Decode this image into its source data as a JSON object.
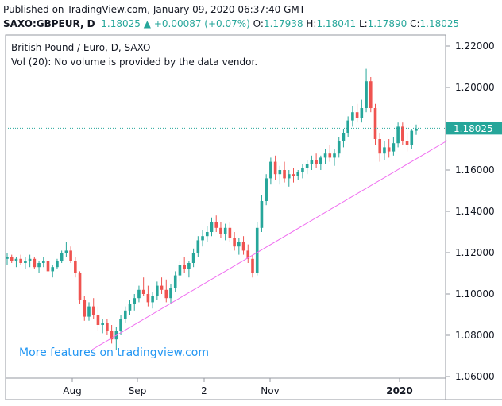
{
  "published": "Published on TradingView.com, January 09, 2020 06:37:40 GMT",
  "header": {
    "symbol": "SAXO:GBPEUR, D",
    "close": "1.18025",
    "arrow": "▲",
    "change": "+0.00087 (+0.07%)",
    "o_key": "O:",
    "o_val": "1.17938",
    "h_key": "H:",
    "h_val": "1.18041",
    "l_key": "L:",
    "l_val": "1.17890",
    "c_key": "C:",
    "c_val": "1.18025"
  },
  "legend": {
    "title": "British Pound / Euro, D, SAXO",
    "volume": "Vol (20): No volume is provided by the data vendor."
  },
  "watermark": "More features on tradingview.com",
  "colors": {
    "up": "#26a69a",
    "down": "#ef5350",
    "trendline": "#f06ef0",
    "price_line": "#26a69a"
  },
  "chart_data": {
    "type": "candlestick",
    "y_ticks": [
      "1.22000",
      "1.20000",
      "1.18000",
      "1.16000",
      "1.14000",
      "1.12000",
      "1.10000",
      "1.08000",
      "1.06000"
    ],
    "ylim": [
      1.06,
      1.22
    ],
    "x_ticks": [
      "Aug",
      "Sep",
      "2",
      "Nov",
      "2020"
    ],
    "last_price": "1.18025",
    "series": [
      {
        "name": "GBPEUR",
        "ohlc": [
          [
            1.117,
            1.12,
            1.114,
            1.118
          ],
          [
            1.118,
            1.119,
            1.115,
            1.116
          ],
          [
            1.116,
            1.118,
            1.113,
            1.117
          ],
          [
            1.117,
            1.119,
            1.114,
            1.115
          ],
          [
            1.115,
            1.118,
            1.112,
            1.116
          ],
          [
            1.116,
            1.119,
            1.113,
            1.117
          ],
          [
            1.117,
            1.118,
            1.112,
            1.113
          ],
          [
            1.113,
            1.116,
            1.11,
            1.115
          ],
          [
            1.115,
            1.118,
            1.113,
            1.116
          ],
          [
            1.116,
            1.117,
            1.11,
            1.111
          ],
          [
            1.111,
            1.114,
            1.108,
            1.113
          ],
          [
            1.113,
            1.117,
            1.112,
            1.116
          ],
          [
            1.116,
            1.121,
            1.115,
            1.12
          ],
          [
            1.12,
            1.125,
            1.118,
            1.121
          ],
          [
            1.121,
            1.123,
            1.115,
            1.116
          ],
          [
            1.116,
            1.118,
            1.108,
            1.11
          ],
          [
            1.11,
            1.111,
            1.095,
            1.097
          ],
          [
            1.097,
            1.099,
            1.087,
            1.089
          ],
          [
            1.089,
            1.096,
            1.087,
            1.094
          ],
          [
            1.094,
            1.098,
            1.088,
            1.09
          ],
          [
            1.09,
            1.094,
            1.082,
            1.085
          ],
          [
            1.085,
            1.088,
            1.081,
            1.086
          ],
          [
            1.086,
            1.088,
            1.08,
            1.082
          ],
          [
            1.082,
            1.085,
            1.076,
            1.078
          ],
          [
            1.078,
            1.084,
            1.073,
            1.082
          ],
          [
            1.082,
            1.09,
            1.08,
            1.088
          ],
          [
            1.088,
            1.094,
            1.086,
            1.092
          ],
          [
            1.092,
            1.097,
            1.09,
            1.095
          ],
          [
            1.095,
            1.1,
            1.092,
            1.098
          ],
          [
            1.098,
            1.104,
            1.096,
            1.102
          ],
          [
            1.102,
            1.108,
            1.099,
            1.1
          ],
          [
            1.1,
            1.104,
            1.094,
            1.096
          ],
          [
            1.096,
            1.101,
            1.093,
            1.099
          ],
          [
            1.099,
            1.106,
            1.097,
            1.104
          ],
          [
            1.104,
            1.108,
            1.1,
            1.102
          ],
          [
            1.102,
            1.107,
            1.096,
            1.098
          ],
          [
            1.098,
            1.105,
            1.095,
            1.103
          ],
          [
            1.103,
            1.111,
            1.101,
            1.109
          ],
          [
            1.109,
            1.116,
            1.106,
            1.114
          ],
          [
            1.114,
            1.118,
            1.11,
            1.112
          ],
          [
            1.112,
            1.116,
            1.108,
            1.115
          ],
          [
            1.115,
            1.122,
            1.113,
            1.12
          ],
          [
            1.12,
            1.128,
            1.118,
            1.126
          ],
          [
            1.126,
            1.131,
            1.123,
            1.128
          ],
          [
            1.128,
            1.133,
            1.125,
            1.13
          ],
          [
            1.13,
            1.137,
            1.128,
            1.135
          ],
          [
            1.135,
            1.138,
            1.13,
            1.132
          ],
          [
            1.132,
            1.135,
            1.127,
            1.129
          ],
          [
            1.129,
            1.134,
            1.126,
            1.132
          ],
          [
            1.132,
            1.135,
            1.125,
            1.127
          ],
          [
            1.127,
            1.13,
            1.121,
            1.123
          ],
          [
            1.123,
            1.127,
            1.119,
            1.125
          ],
          [
            1.125,
            1.128,
            1.119,
            1.121
          ],
          [
            1.121,
            1.124,
            1.115,
            1.117
          ],
          [
            1.117,
            1.119,
            1.108,
            1.11
          ],
          [
            1.11,
            1.135,
            1.109,
            1.132
          ],
          [
            1.132,
            1.148,
            1.13,
            1.145
          ],
          [
            1.145,
            1.158,
            1.143,
            1.156
          ],
          [
            1.156,
            1.166,
            1.153,
            1.164
          ],
          [
            1.164,
            1.167,
            1.155,
            1.158
          ],
          [
            1.158,
            1.162,
            1.153,
            1.16
          ],
          [
            1.16,
            1.164,
            1.154,
            1.156
          ],
          [
            1.156,
            1.16,
            1.152,
            1.158
          ],
          [
            1.158,
            1.161,
            1.154,
            1.157
          ],
          [
            1.157,
            1.16,
            1.155,
            1.159
          ],
          [
            1.159,
            1.163,
            1.156,
            1.161
          ],
          [
            1.161,
            1.165,
            1.158,
            1.163
          ],
          [
            1.163,
            1.167,
            1.16,
            1.165
          ],
          [
            1.165,
            1.168,
            1.161,
            1.163
          ],
          [
            1.163,
            1.167,
            1.16,
            1.166
          ],
          [
            1.166,
            1.17,
            1.163,
            1.168
          ],
          [
            1.168,
            1.172,
            1.164,
            1.166
          ],
          [
            1.166,
            1.17,
            1.162,
            1.168
          ],
          [
            1.168,
            1.176,
            1.166,
            1.174
          ],
          [
            1.174,
            1.18,
            1.171,
            1.178
          ],
          [
            1.178,
            1.186,
            1.176,
            1.184
          ],
          [
            1.184,
            1.191,
            1.181,
            1.188
          ],
          [
            1.188,
            1.192,
            1.183,
            1.185
          ],
          [
            1.185,
            1.194,
            1.183,
            1.19
          ],
          [
            1.19,
            1.209,
            1.188,
            1.203
          ],
          [
            1.203,
            1.205,
            1.188,
            1.19
          ],
          [
            1.19,
            1.192,
            1.172,
            1.175
          ],
          [
            1.175,
            1.178,
            1.164,
            1.168
          ],
          [
            1.168,
            1.174,
            1.165,
            1.171
          ],
          [
            1.171,
            1.175,
            1.166,
            1.169
          ],
          [
            1.169,
            1.176,
            1.167,
            1.173
          ],
          [
            1.173,
            1.183,
            1.171,
            1.181
          ],
          [
            1.181,
            1.183,
            1.172,
            1.174
          ],
          [
            1.174,
            1.178,
            1.169,
            1.172
          ],
          [
            1.172,
            1.18,
            1.17,
            1.179
          ],
          [
            1.179,
            1.182,
            1.177,
            1.18
          ]
        ]
      }
    ]
  }
}
